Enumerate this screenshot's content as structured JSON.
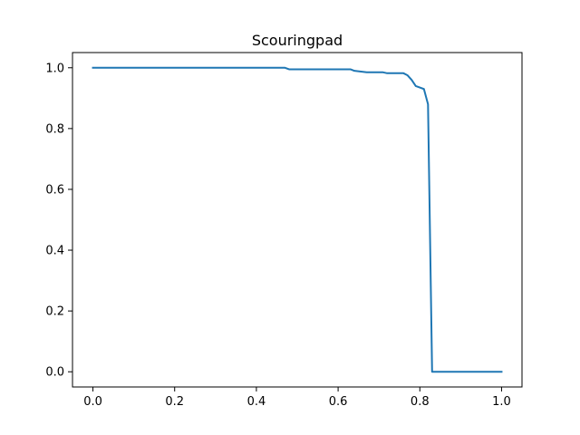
{
  "chart_data": {
    "type": "line",
    "title": "Scouringpad",
    "xlabel": "",
    "ylabel": "",
    "xlim": [
      -0.05,
      1.05
    ],
    "ylim": [
      -0.05,
      1.05
    ],
    "xticks": [
      0.0,
      0.2,
      0.4,
      0.6,
      0.8,
      1.0
    ],
    "xtick_labels": [
      "0.0",
      "0.2",
      "0.4",
      "0.6",
      "0.8",
      "1.0"
    ],
    "yticks": [
      0.0,
      0.2,
      0.4,
      0.6,
      0.8,
      1.0
    ],
    "ytick_labels": [
      "0.0",
      "0.2",
      "0.4",
      "0.6",
      "0.8",
      "1.0"
    ],
    "grid": false,
    "series": [
      {
        "color": "#1f77b4",
        "x": [
          0.0,
          0.47,
          0.48,
          0.63,
          0.64,
          0.67,
          0.71,
          0.72,
          0.76,
          0.77,
          0.78,
          0.79,
          0.8,
          0.81,
          0.82,
          0.83,
          1.0
        ],
        "y": [
          1.0,
          1.0,
          0.995,
          0.995,
          0.99,
          0.985,
          0.985,
          0.982,
          0.982,
          0.975,
          0.96,
          0.94,
          0.935,
          0.93,
          0.88,
          0.0,
          0.0
        ]
      }
    ]
  }
}
